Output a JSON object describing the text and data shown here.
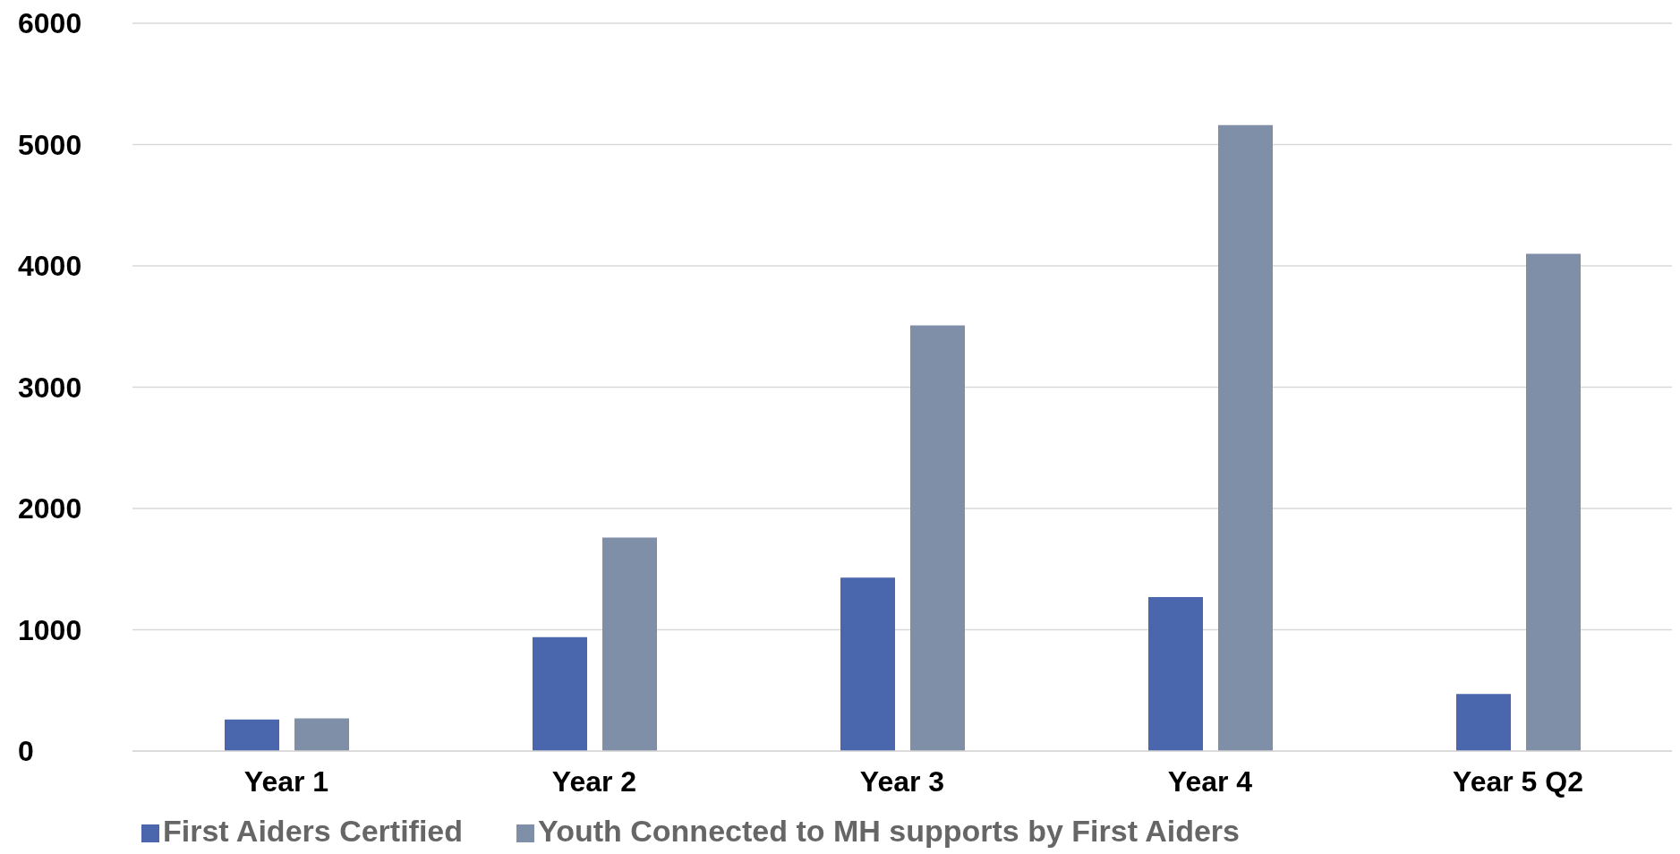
{
  "chart_data": {
    "type": "bar",
    "categories": [
      "Year 1",
      "Year 2",
      "Year 3",
      "Year 4",
      "Year 5 Q2"
    ],
    "series": [
      {
        "name": "First Aiders Certified",
        "color": "#4a67ad",
        "values": [
          260,
          940,
          1430,
          1270,
          470
        ]
      },
      {
        "name": "Youth Connected to MH supports by First Aiders",
        "color": "#808fa8",
        "values": [
          270,
          1760,
          3510,
          5160,
          4100
        ]
      }
    ],
    "ylim": [
      0,
      6000
    ],
    "yticks": [
      0,
      1000,
      2000,
      3000,
      4000,
      5000,
      6000
    ],
    "grid": "y",
    "legend": "bottom left"
  }
}
